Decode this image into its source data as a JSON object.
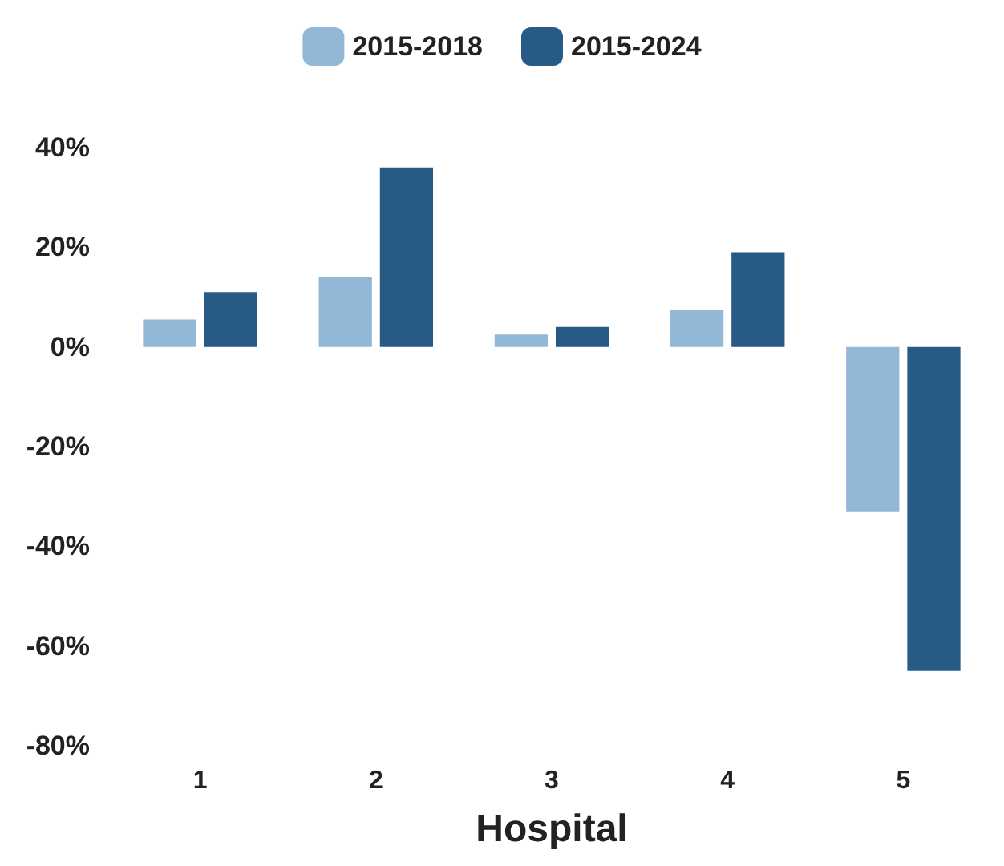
{
  "chart_data": {
    "type": "bar",
    "xlabel": "Hospital",
    "categories": [
      "1",
      "2",
      "3",
      "4",
      "5"
    ],
    "series": [
      {
        "name": "2015-2018",
        "color": "#93b7d6",
        "values": [
          5.5,
          14,
          2.5,
          7.5,
          -33
        ]
      },
      {
        "name": "2015-2024",
        "color": "#285a86",
        "values": [
          11,
          36,
          4,
          19,
          -65
        ]
      }
    ],
    "ylim": [
      -80,
      40
    ],
    "yticks": [
      {
        "value": -80,
        "label": "-80%"
      },
      {
        "value": -60,
        "label": "-60%"
      },
      {
        "value": -40,
        "label": "-40%"
      },
      {
        "value": -20,
        "label": "-20%"
      },
      {
        "value": 0,
        "label": "0%"
      },
      {
        "value": 20,
        "label": "20%"
      },
      {
        "value": 40,
        "label": "40%"
      }
    ],
    "grid": false,
    "legend": "top"
  }
}
